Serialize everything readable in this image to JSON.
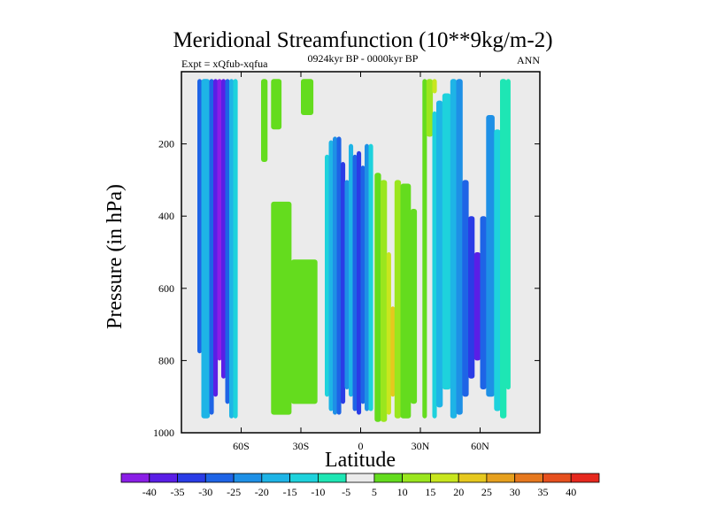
{
  "chart_data": {
    "type": "contour",
    "title": "Meridional Streamfunction (10**9kg/m-2)",
    "subtitle_left": "Expt = xQfub-xqfua",
    "subtitle_center": "0924kyr BP - 0000kyr BP",
    "subtitle_right": "ANN",
    "xlabel": "Latitude",
    "ylabel": "Pressure (in hPa)",
    "xlim": [
      -90,
      90
    ],
    "ylim": [
      0,
      1000
    ],
    "y_inverted": true,
    "x_ticks": [
      {
        "value": -60,
        "label": "60S"
      },
      {
        "value": -30,
        "label": "30S"
      },
      {
        "value": 0,
        "label": "0"
      },
      {
        "value": 30,
        "label": "30N"
      },
      {
        "value": 60,
        "label": "60N"
      }
    ],
    "y_ticks": [
      {
        "value": 200,
        "label": "200"
      },
      {
        "value": 400,
        "label": "400"
      },
      {
        "value": 600,
        "label": "600"
      },
      {
        "value": 800,
        "label": "800"
      },
      {
        "value": 1000,
        "label": "1000"
      }
    ],
    "colorbar": {
      "levels": [
        "-40",
        "-35",
        "-30",
        "-25",
        "-20",
        "-15",
        "-10",
        "-5",
        "5",
        "10",
        "15",
        "20",
        "25",
        "30",
        "35",
        "40"
      ],
      "colors": [
        "#8a1ee6",
        "#5a1ee6",
        "#2a3ce6",
        "#1e64e6",
        "#1e90e6",
        "#1eb4e6",
        "#1ed2dc",
        "#1ee6b4",
        "#ebebeb",
        "#64dc1e",
        "#9ae61e",
        "#c8e61e",
        "#e6c81e",
        "#e6a01e",
        "#e6781e",
        "#e6501e",
        "#e6281e"
      ]
    },
    "cells": [
      {
        "lat0": -82,
        "lat1": -80,
        "p0": 20,
        "p1": 780,
        "level": 3
      },
      {
        "lat0": -80,
        "lat1": -76,
        "p0": 20,
        "p1": 960,
        "level": 5
      },
      {
        "lat0": -76,
        "lat1": -74,
        "p0": 20,
        "p1": 950,
        "level": 3
      },
      {
        "lat0": -74,
        "lat1": -72,
        "p0": 20,
        "p1": 900,
        "level": 1
      },
      {
        "lat0": -72,
        "lat1": -70,
        "p0": 20,
        "p1": 800,
        "level": 0
      },
      {
        "lat0": -70,
        "lat1": -68,
        "p0": 20,
        "p1": 850,
        "level": 1
      },
      {
        "lat0": -68,
        "lat1": -66,
        "p0": 20,
        "p1": 920,
        "level": 3
      },
      {
        "lat0": -66,
        "lat1": -64,
        "p0": 20,
        "p1": 960,
        "level": 5
      },
      {
        "lat0": -64,
        "lat1": -62,
        "p0": 20,
        "p1": 960,
        "level": 6
      },
      {
        "lat0": -50,
        "lat1": -47,
        "p0": 20,
        "p1": 250,
        "level": 9
      },
      {
        "lat0": -45,
        "lat1": -40,
        "p0": 20,
        "p1": 160,
        "level": 9
      },
      {
        "lat0": -45,
        "lat1": -35,
        "p0": 360,
        "p1": 950,
        "level": 9
      },
      {
        "lat0": -35,
        "lat1": -22,
        "p0": 520,
        "p1": 920,
        "level": 9
      },
      {
        "lat0": -30,
        "lat1": -24,
        "p0": 20,
        "p1": 120,
        "level": 9
      },
      {
        "lat0": -18,
        "lat1": -16,
        "p0": 230,
        "p1": 900,
        "level": 6
      },
      {
        "lat0": -16,
        "lat1": -14,
        "p0": 190,
        "p1": 940,
        "level": 5
      },
      {
        "lat0": -14,
        "lat1": -12,
        "p0": 180,
        "p1": 950,
        "level": 4
      },
      {
        "lat0": -12,
        "lat1": -10,
        "p0": 180,
        "p1": 950,
        "level": 3
      },
      {
        "lat0": -10,
        "lat1": -8,
        "p0": 250,
        "p1": 920,
        "level": 2
      },
      {
        "lat0": -8,
        "lat1": -6,
        "p0": 300,
        "p1": 880,
        "level": 4
      },
      {
        "lat0": -6,
        "lat1": -4,
        "p0": 200,
        "p1": 900,
        "level": 5
      },
      {
        "lat0": -4,
        "lat1": -2,
        "p0": 230,
        "p1": 940,
        "level": 3
      },
      {
        "lat0": -2,
        "lat1": 0,
        "p0": 220,
        "p1": 950,
        "level": 2
      },
      {
        "lat0": 0,
        "lat1": 2,
        "p0": 260,
        "p1": 920,
        "level": 3
      },
      {
        "lat0": 2,
        "lat1": 4,
        "p0": 200,
        "p1": 940,
        "level": 4
      },
      {
        "lat0": 4,
        "lat1": 6,
        "p0": 200,
        "p1": 940,
        "level": 6
      },
      {
        "lat0": 7,
        "lat1": 10,
        "p0": 280,
        "p1": 970,
        "level": 9
      },
      {
        "lat0": 10,
        "lat1": 13,
        "p0": 300,
        "p1": 970,
        "level": 10
      },
      {
        "lat0": 13,
        "lat1": 15,
        "p0": 500,
        "p1": 950,
        "level": 11
      },
      {
        "lat0": 15,
        "lat1": 17,
        "p0": 650,
        "p1": 900,
        "level": 12
      },
      {
        "lat0": 17,
        "lat1": 20,
        "p0": 300,
        "p1": 960,
        "level": 10
      },
      {
        "lat0": 20,
        "lat1": 25,
        "p0": 310,
        "p1": 960,
        "level": 9
      },
      {
        "lat0": 25,
        "lat1": 28,
        "p0": 380,
        "p1": 920,
        "level": 9
      },
      {
        "lat0": 31,
        "lat1": 33,
        "p0": 20,
        "p1": 960,
        "level": 9
      },
      {
        "lat0": 33,
        "lat1": 36,
        "p0": 20,
        "p1": 180,
        "level": 10
      },
      {
        "lat0": 36,
        "lat1": 38,
        "p0": 20,
        "p1": 60,
        "level": 11
      },
      {
        "lat0": 36,
        "lat1": 38,
        "p0": 110,
        "p1": 960,
        "level": 6
      },
      {
        "lat0": 38,
        "lat1": 41,
        "p0": 80,
        "p1": 930,
        "level": 5
      },
      {
        "lat0": 41,
        "lat1": 45,
        "p0": 60,
        "p1": 880,
        "level": 6
      },
      {
        "lat0": 45,
        "lat1": 48,
        "p0": 20,
        "p1": 960,
        "level": 5
      },
      {
        "lat0": 48,
        "lat1": 51,
        "p0": 20,
        "p1": 950,
        "level": 4
      },
      {
        "lat0": 51,
        "lat1": 54,
        "p0": 300,
        "p1": 900,
        "level": 3
      },
      {
        "lat0": 54,
        "lat1": 57,
        "p0": 400,
        "p1": 850,
        "level": 2
      },
      {
        "lat0": 57,
        "lat1": 60,
        "p0": 500,
        "p1": 800,
        "level": 1
      },
      {
        "lat0": 60,
        "lat1": 63,
        "p0": 400,
        "p1": 880,
        "level": 3
      },
      {
        "lat0": 63,
        "lat1": 67,
        "p0": 120,
        "p1": 900,
        "level": 4
      },
      {
        "lat0": 67,
        "lat1": 70,
        "p0": 160,
        "p1": 940,
        "level": 6
      },
      {
        "lat0": 70,
        "lat1": 73,
        "p0": 20,
        "p1": 960,
        "level": 7
      },
      {
        "lat0": 73,
        "lat1": 75,
        "p0": 20,
        "p1": 880,
        "level": 7
      }
    ]
  }
}
